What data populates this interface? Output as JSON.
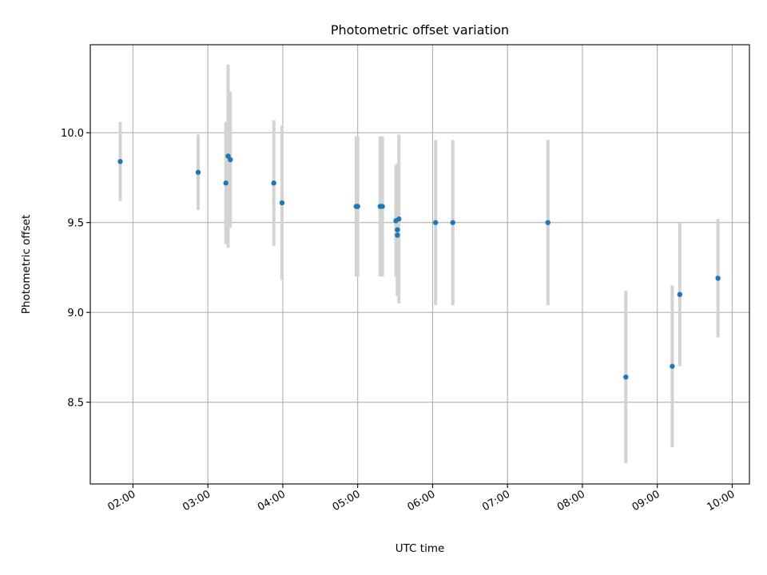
{
  "chart_data": {
    "type": "scatter",
    "title": "Photometric offset variation",
    "xlabel": "UTC time",
    "ylabel": "Photometric offset",
    "x_unit": "hours (UTC)",
    "xlim": [
      1.43,
      10.23
    ],
    "ylim": [
      8.045,
      10.49
    ],
    "x_ticks": [
      2,
      3,
      4,
      5,
      6,
      7,
      8,
      9,
      10
    ],
    "x_tick_labels": [
      "02:00",
      "03:00",
      "04:00",
      "05:00",
      "06:00",
      "07:00",
      "08:00",
      "09:00",
      "10:00"
    ],
    "y_ticks": [
      8.5,
      9.0,
      9.5,
      10.0
    ],
    "y_tick_labels": [
      "8.5",
      "9.0",
      "9.5",
      "10.0"
    ],
    "grid": true,
    "colors": {
      "point": "#1f77b4",
      "errorbar": "#d3d3d3",
      "grid": "#b0b0b0"
    },
    "points": [
      {
        "x": 1.83,
        "y": 9.84,
        "err": 0.22
      },
      {
        "x": 2.87,
        "y": 9.78,
        "err": 0.21
      },
      {
        "x": 3.24,
        "y": 9.72,
        "err": 0.34
      },
      {
        "x": 3.27,
        "y": 9.87,
        "err": 0.51
      },
      {
        "x": 3.3,
        "y": 9.85,
        "err": 0.38
      },
      {
        "x": 3.88,
        "y": 9.72,
        "err": 0.35
      },
      {
        "x": 3.99,
        "y": 9.61,
        "err": 0.43
      },
      {
        "x": 4.98,
        "y": 9.59,
        "err": 0.39
      },
      {
        "x": 5.0,
        "y": 9.59,
        "err": 0.39
      },
      {
        "x": 5.3,
        "y": 9.59,
        "err": 0.39
      },
      {
        "x": 5.33,
        "y": 9.59,
        "err": 0.39
      },
      {
        "x": 5.51,
        "y": 9.51,
        "err": 0.31
      },
      {
        "x": 5.53,
        "y": 9.46,
        "err": 0.37
      },
      {
        "x": 5.53,
        "y": 9.43,
        "err": 0.33
      },
      {
        "x": 5.55,
        "y": 9.52,
        "err": 0.47
      },
      {
        "x": 6.04,
        "y": 9.5,
        "err": 0.46
      },
      {
        "x": 6.27,
        "y": 9.5,
        "err": 0.46
      },
      {
        "x": 7.54,
        "y": 9.5,
        "err": 0.46
      },
      {
        "x": 8.58,
        "y": 8.64,
        "err": 0.48
      },
      {
        "x": 9.2,
        "y": 8.7,
        "err": 0.45
      },
      {
        "x": 9.3,
        "y": 9.1,
        "err": 0.4
      },
      {
        "x": 9.81,
        "y": 9.19,
        "err": 0.33
      }
    ]
  }
}
